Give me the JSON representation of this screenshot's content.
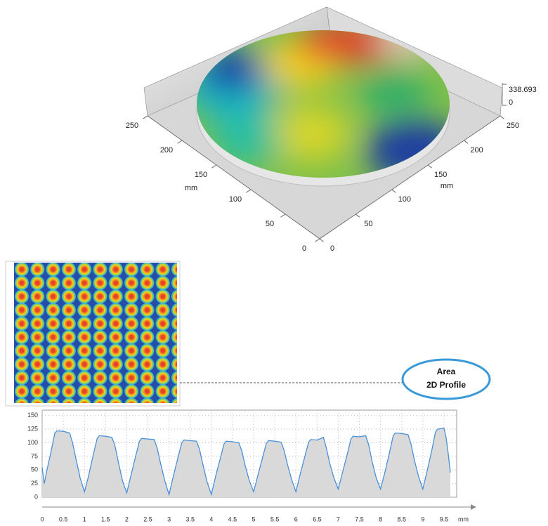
{
  "chart_data": [
    {
      "type": "surface3d",
      "xlabel": "mm",
      "ylabel": "mm",
      "xlim": [
        0,
        250
      ],
      "xticks": [
        0,
        50,
        100,
        150,
        200,
        250
      ],
      "ylim": [
        0,
        250
      ],
      "yticks": [
        0,
        50,
        100,
        150,
        200,
        250
      ],
      "zticks": [
        0,
        338.693
      ]
    },
    {
      "type": "line",
      "xlabel": "mm",
      "color": "#4a90d9",
      "fill": "#d9d9d9",
      "xlim": [
        0,
        9.8
      ],
      "ylim": [
        0,
        160
      ],
      "xticks": [
        0,
        0.5,
        1,
        1.5,
        2,
        2.5,
        3,
        3.5,
        4,
        4.5,
        5,
        5.5,
        6,
        6.5,
        7,
        7.5,
        8,
        8.5,
        9,
        9.5
      ],
      "yticks": [
        0,
        25,
        50,
        75,
        100,
        125,
        150
      ],
      "grid": true,
      "annotation": [
        "Area",
        "2D Profile"
      ],
      "x": [
        0,
        0.05,
        0.1,
        0.2,
        0.3,
        0.35,
        0.5,
        0.65,
        0.72,
        0.8,
        0.9,
        1.0,
        1.1,
        1.2,
        1.3,
        1.35,
        1.5,
        1.65,
        1.72,
        1.8,
        1.9,
        2.0,
        2.1,
        2.2,
        2.3,
        2.35,
        2.5,
        2.65,
        2.72,
        2.8,
        2.9,
        3.0,
        3.1,
        3.2,
        3.3,
        3.35,
        3.5,
        3.65,
        3.72,
        3.8,
        3.9,
        4.0,
        4.1,
        4.2,
        4.3,
        4.35,
        4.5,
        4.65,
        4.72,
        4.8,
        4.9,
        5.0,
        5.1,
        5.2,
        5.3,
        5.35,
        5.5,
        5.65,
        5.72,
        5.8,
        5.9,
        6.0,
        6.1,
        6.2,
        6.3,
        6.35,
        6.5,
        6.65,
        6.72,
        6.8,
        6.9,
        7.0,
        7.1,
        7.2,
        7.3,
        7.35,
        7.5,
        7.65,
        7.72,
        7.8,
        7.9,
        8.0,
        8.1,
        8.2,
        8.3,
        8.35,
        8.5,
        8.65,
        8.72,
        8.8,
        8.9,
        9.0,
        9.1,
        9.2,
        9.3,
        9.35,
        9.5,
        9.55,
        9.6,
        9.65
      ],
      "values": [
        55,
        25,
        45,
        80,
        118,
        122,
        121,
        118,
        100,
        70,
        35,
        10,
        40,
        75,
        108,
        113,
        112,
        110,
        95,
        65,
        30,
        8,
        40,
        72,
        103,
        108,
        107,
        106,
        90,
        62,
        30,
        5,
        38,
        70,
        100,
        105,
        104,
        103,
        88,
        60,
        28,
        5,
        38,
        68,
        98,
        103,
        102,
        100,
        85,
        58,
        30,
        10,
        40,
        70,
        99,
        104,
        103,
        101,
        86,
        60,
        32,
        10,
        42,
        72,
        101,
        106,
        105,
        110,
        90,
        62,
        35,
        15,
        45,
        75,
        107,
        112,
        111,
        113,
        96,
        66,
        35,
        15,
        45,
        78,
        113,
        118,
        117,
        115,
        98,
        68,
        38,
        15,
        48,
        82,
        120,
        125,
        127,
        110,
        80,
        45
      ]
    }
  ]
}
